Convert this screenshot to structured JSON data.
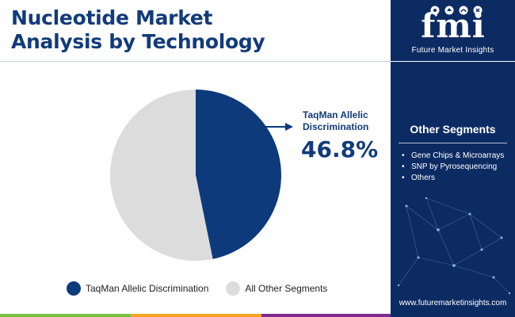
{
  "header": {
    "title_line1": "Nucleotide Market",
    "title_line2": "Analysis by Technology"
  },
  "brand": {
    "logo_text": "fmi",
    "name": "Future Market Insights",
    "website": "www.futuremarketinsights.com"
  },
  "side_panel": {
    "title": "Other Segments",
    "items": [
      "Gene Chips & Microarrays",
      "SNP by Pyrosequencing",
      "Others"
    ]
  },
  "chart_data": {
    "type": "pie",
    "title": "Nucleotide Market Analysis by Technology",
    "slices": [
      {
        "label": "TaqMan Allelic Discrimination",
        "value": 46.8,
        "color": "#0d3a7a"
      },
      {
        "label": "All Other Segments",
        "value": 53.2,
        "color": "#dcdcdc"
      }
    ],
    "start_angle_deg": 0,
    "legend_position": "bottom",
    "callout": {
      "label": "TaqMan Allelic Discrimination",
      "value_text": "46.8%"
    }
  },
  "colors": {
    "primary": "#0d3a7a",
    "panel": "#0d2b63",
    "other": "#dcdcdc"
  }
}
